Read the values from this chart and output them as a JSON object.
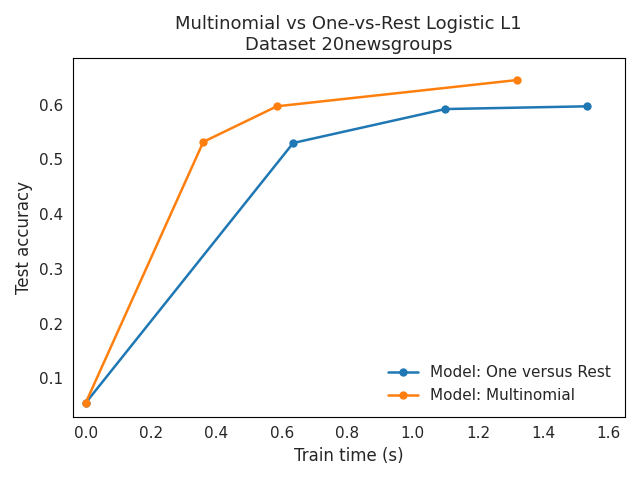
{
  "title_line1": "Multinomial vs One-vs-Rest Logistic L1",
  "title_line2": "Dataset 20newsgroups",
  "xlabel": "Train time (s)",
  "ylabel": "Test accuracy",
  "one_vs_rest": {
    "x": [
      0.0,
      0.635,
      1.1,
      1.535
    ],
    "y": [
      0.055,
      0.53,
      0.592,
      0.597
    ],
    "color": "#1f77b4",
    "label": "Model: One versus Rest"
  },
  "multinomial": {
    "x": [
      0.0,
      0.36,
      0.585,
      1.32
    ],
    "y": [
      0.055,
      0.532,
      0.597,
      0.645
    ],
    "color": "#ff7f0e",
    "label": "Model: Multinomial"
  },
  "xlim": [
    -0.04,
    1.65
  ],
  "ylim": [
    0.03,
    0.685
  ],
  "legend_loc": "lower right",
  "figsize": [
    6.4,
    4.8
  ],
  "dpi": 100,
  "xticks": [
    0.0,
    0.2,
    0.4,
    0.6,
    0.8,
    1.0,
    1.2,
    1.4,
    1.6
  ],
  "yticks": [
    0.1,
    0.2,
    0.3,
    0.4,
    0.5,
    0.6
  ]
}
